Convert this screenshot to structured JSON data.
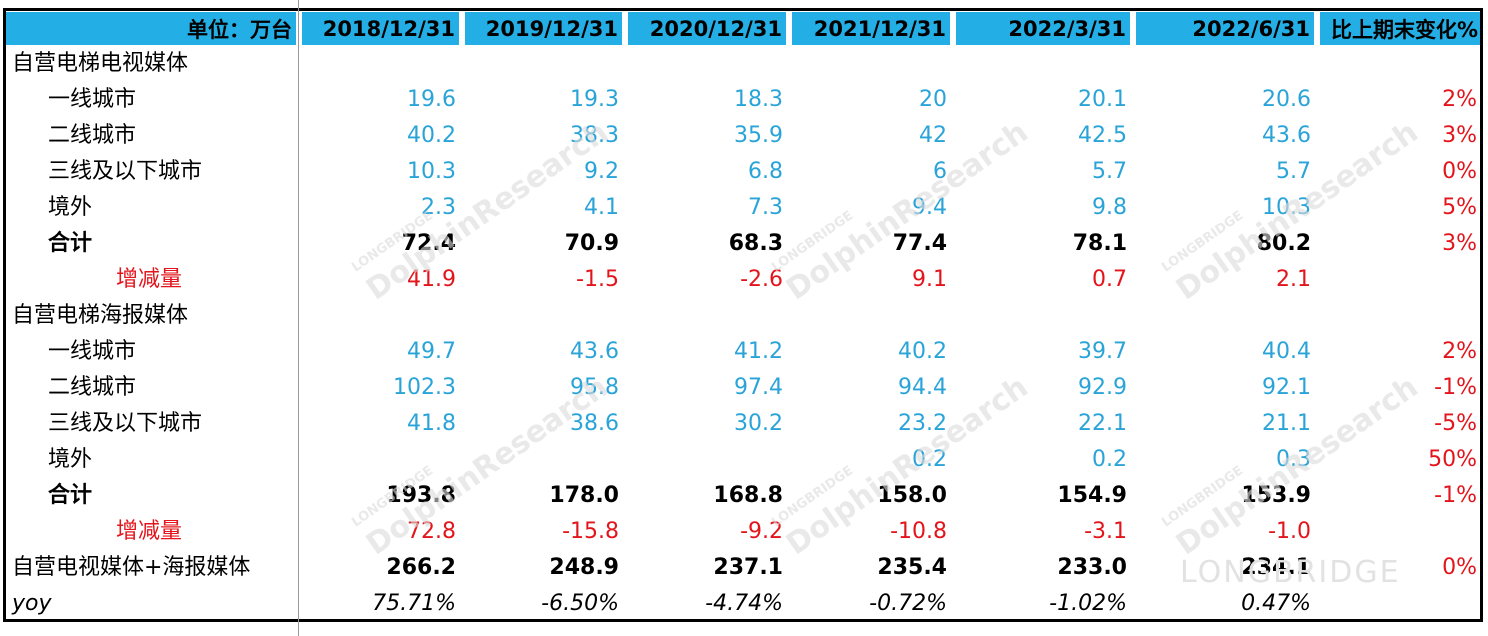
{
  "header": {
    "unit": "单位：万台",
    "columns": [
      "2018/12/31",
      "2019/12/31",
      "2020/12/31",
      "2021/12/31",
      "2022/3/31",
      "2022/6/31",
      "比上期末变化%"
    ]
  },
  "rows": [
    {
      "label": "自营电梯电视媒体",
      "values": [
        "",
        "",
        "",
        "",
        "",
        "",
        ""
      ]
    },
    {
      "label": "一线城市",
      "values": [
        "19.6",
        "19.3",
        "18.3",
        "20",
        "20.1",
        "20.6",
        "2%"
      ]
    },
    {
      "label": "二线城市",
      "values": [
        "40.2",
        "38.3",
        "35.9",
        "42",
        "42.5",
        "43.6",
        "3%"
      ]
    },
    {
      "label": "三线及以下城市",
      "values": [
        "10.3",
        "9.2",
        "6.8",
        "6",
        "5.7",
        "5.7",
        "0%"
      ]
    },
    {
      "label": "境外",
      "values": [
        "2.3",
        "4.1",
        "7.3",
        "9.4",
        "9.8",
        "10.3",
        "5%"
      ]
    },
    {
      "label": "合计",
      "values": [
        "72.4",
        "70.9",
        "68.3",
        "77.4",
        "78.1",
        "80.2",
        "3%"
      ]
    },
    {
      "label": "增减量",
      "values": [
        "41.9",
        "-1.5",
        "-2.6",
        "9.1",
        "0.7",
        "2.1",
        ""
      ]
    },
    {
      "label": "自营电梯海报媒体",
      "values": [
        "",
        "",
        "",
        "",
        "",
        "",
        ""
      ]
    },
    {
      "label": "一线城市",
      "values": [
        "49.7",
        "43.6",
        "41.2",
        "40.2",
        "39.7",
        "40.4",
        "2%"
      ]
    },
    {
      "label": "二线城市",
      "values": [
        "102.3",
        "95.8",
        "97.4",
        "94.4",
        "92.9",
        "92.1",
        "-1%"
      ]
    },
    {
      "label": "三线及以下城市",
      "values": [
        "41.8",
        "38.6",
        "30.2",
        "23.2",
        "22.1",
        "21.1",
        "-5%"
      ]
    },
    {
      "label": "境外",
      "values": [
        "",
        "",
        "",
        "0.2",
        "0.2",
        "0.3",
        "50%"
      ]
    },
    {
      "label": "合计",
      "values": [
        "193.8",
        "178.0",
        "168.8",
        "158.0",
        "154.9",
        "153.9",
        "-1%"
      ]
    },
    {
      "label": "增减量",
      "values": [
        "72.8",
        "-15.8",
        "-9.2",
        "-10.8",
        "-3.1",
        "-1.0",
        ""
      ]
    },
    {
      "label": "自营电视媒体+海报媒体",
      "values": [
        "266.2",
        "248.9",
        "237.1",
        "235.4",
        "233.0",
        "234.1",
        "0%"
      ]
    },
    {
      "label": "yoy",
      "values": [
        "75.71%",
        "-6.50%",
        "-4.74%",
        "-0.72%",
        "-1.02%",
        "0.47%",
        ""
      ]
    }
  ],
  "watermark": {
    "brand": "LONGBRIDGE",
    "name": "DolphinResearch"
  },
  "colors": {
    "header_bg": "#23aee5",
    "blue_value": "#2aa4d8",
    "red_value": "#e3141b"
  }
}
